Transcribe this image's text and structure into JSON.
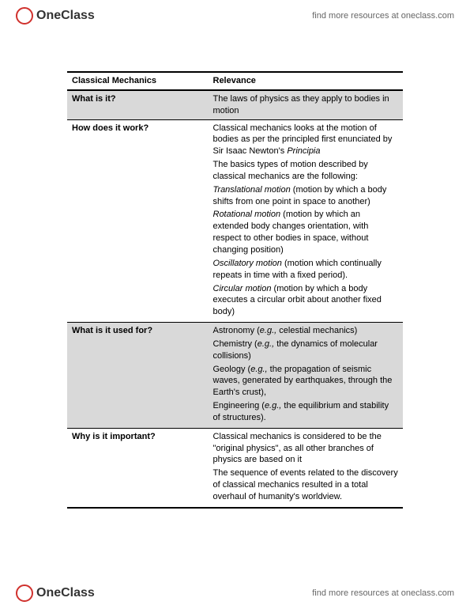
{
  "brand": {
    "name": "OneClass",
    "tagline": "find more resources at oneclass.com"
  },
  "tableHeader": {
    "col1": "Classical Mechanics",
    "col2": "Relevance"
  },
  "rows": {
    "r1": {
      "q": "What is it?",
      "a": "The laws of physics as they apply to bodies in motion"
    },
    "r2": {
      "q": "How does it work?",
      "p1a": "Classical mechanics looks at the motion of bodies as per the principled first enunciated by Sir Isaac Newton's ",
      "p1b": "Principia",
      "p2": "The basics types of motion described by classical mechanics are the following:",
      "tr_i": "Translational motion",
      "tr_d": " (motion by which a body shifts from one point in space to another)",
      "ro_i": "Rotational motion",
      "ro_d": " (motion by which an extended body changes orientation, with respect to other bodies in space, without changing position)",
      "os_i": "Oscillatory motion",
      "os_d": " (motion which continually repeats in time with a fixed period).",
      "ci_i": "Circular motion",
      "ci_d": " (motion by which a body executes a circular orbit about another fixed body)"
    },
    "r3": {
      "q": "What is it used for?",
      "as1": "Astronomy (",
      "eg1": "e.g.,",
      "as2": " celestial mechanics)",
      "ch1": "Chemistry (",
      "eg2": "e.g.,",
      "ch2": " the dynamics of molecular collisions)",
      "ge1": "Geology (",
      "eg3": "e.g.,",
      "ge2": " the propagation of seismic waves, generated by earthquakes, through the Earth's crust),",
      "en1": "Engineering (",
      "eg4": "e.g.,",
      "en2": " the equilibrium and stability of structures)."
    },
    "r4": {
      "q": "Why is it important?",
      "p1": "Classical mechanics is considered to be the \"original physics\", as all other branches of physics are based on it",
      "p2": "The sequence of events related to the discovery of classical mechanics resulted in a total overhaul of humanity's worldview."
    }
  }
}
